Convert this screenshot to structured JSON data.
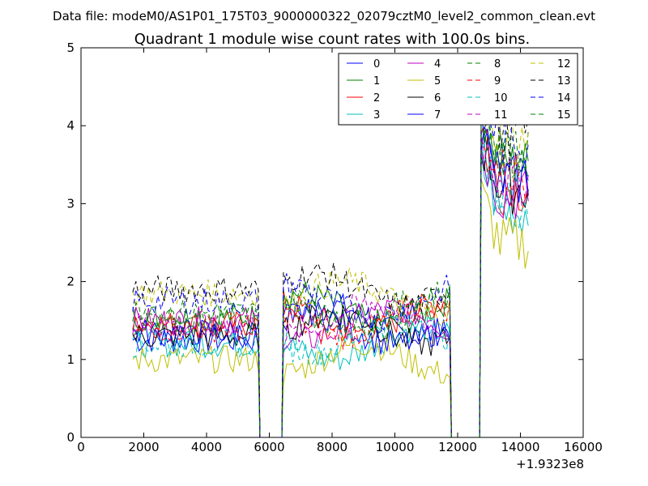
{
  "figure": {
    "suptitle": "Data file: modeM0/AS1P01_175T03_9000000322_02079cztM0_level2_common_clean.evt"
  },
  "chart_data": {
    "type": "line",
    "title": "Quadrant 1 module wise count rates with 100.0s bins.",
    "xlabel": "",
    "ylabel": "",
    "xlim": [
      0,
      16000
    ],
    "ylim": [
      0,
      5
    ],
    "x_offset_label": "+1.9323e8",
    "xticks": [
      0,
      2000,
      4000,
      6000,
      8000,
      10000,
      12000,
      14000,
      16000
    ],
    "yticks": [
      0,
      1,
      2,
      3,
      4,
      5
    ],
    "grid": false,
    "legend_position": "top-right",
    "legend_columns": 4,
    "bin_seconds": 100,
    "segments": [
      {
        "x_start": 1650,
        "x_end": 5650
      },
      {
        "x_start": 6450,
        "x_end": 11750
      },
      {
        "x_start": 12750,
        "x_end": 14250
      }
    ],
    "gaps": [
      [
        5650,
        6450
      ],
      [
        11750,
        12750
      ]
    ],
    "series": [
      {
        "name": "0",
        "color": "#0000ff",
        "dash": "solid",
        "level_seg1": 1.25,
        "level_seg2": 1.5,
        "level_seg3": 3.3
      },
      {
        "name": "1",
        "color": "#008000",
        "dash": "solid",
        "level_seg1": 1.55,
        "level_seg2": 1.65,
        "level_seg3": 3.5
      },
      {
        "name": "2",
        "color": "#ff0000",
        "dash": "solid",
        "level_seg1": 1.45,
        "level_seg2": 1.55,
        "level_seg3": 3.2
      },
      {
        "name": "3",
        "color": "#00bfbf",
        "dash": "solid",
        "level_seg1": 1.2,
        "level_seg2": 1.2,
        "level_seg3": 2.9
      },
      {
        "name": "4",
        "color": "#bf00bf",
        "dash": "solid",
        "level_seg1": 1.5,
        "level_seg2": 1.45,
        "level_seg3": 3.1
      },
      {
        "name": "5",
        "color": "#bfbf00",
        "dash": "solid",
        "level_seg1": 1.0,
        "level_seg2": 1.0,
        "level_seg3": 2.5
      },
      {
        "name": "6",
        "color": "#000000",
        "dash": "solid",
        "level_seg1": 1.3,
        "level_seg2": 1.4,
        "level_seg3": 3.2
      },
      {
        "name": "7",
        "color": "#0000ff",
        "dash": "solid",
        "level_seg1": 1.35,
        "level_seg2": 1.4,
        "level_seg3": 3.3
      },
      {
        "name": "8",
        "color": "#008000",
        "dash": "dashed",
        "level_seg1": 1.5,
        "level_seg2": 1.6,
        "level_seg3": 3.6
      },
      {
        "name": "9",
        "color": "#ff0000",
        "dash": "dashed",
        "level_seg1": 1.4,
        "level_seg2": 1.5,
        "level_seg3": 3.4
      },
      {
        "name": "10",
        "color": "#00bfbf",
        "dash": "dashed",
        "level_seg1": 1.2,
        "level_seg2": 1.3,
        "level_seg3": 3.0
      },
      {
        "name": "11",
        "color": "#bf00bf",
        "dash": "dashed",
        "level_seg1": 1.45,
        "level_seg2": 1.5,
        "level_seg3": 3.3
      },
      {
        "name": "12",
        "color": "#bfbf00",
        "dash": "dashed",
        "level_seg1": 1.85,
        "level_seg2": 1.8,
        "level_seg3": 3.8
      },
      {
        "name": "13",
        "color": "#000000",
        "dash": "dashed",
        "level_seg1": 1.9,
        "level_seg2": 1.9,
        "level_seg3": 3.9
      },
      {
        "name": "14",
        "color": "#0000ff",
        "dash": "dashed",
        "level_seg1": 1.75,
        "level_seg2": 1.75,
        "level_seg3": 3.8
      },
      {
        "name": "15",
        "color": "#008000",
        "dash": "dashed",
        "level_seg1": 1.6,
        "level_seg2": 1.65,
        "level_seg3": 3.6
      }
    ]
  }
}
